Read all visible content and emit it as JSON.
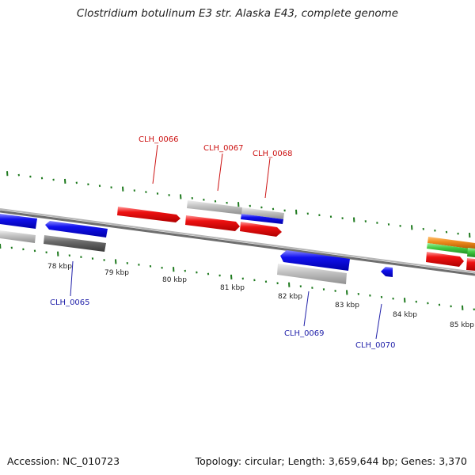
{
  "title": "Clostridium botulinum E3 str. Alaska E43, complete genome",
  "footer": {
    "accession": "Accession: NC_010723",
    "summary": "Topology: circular; Length: 3,659,644 bp; Genes: 3,370"
  },
  "colors": {
    "backbone": "#808080",
    "ticks": "#1e7a1e",
    "red": "#ee1111",
    "blue": "#1111ee",
    "lightgray": "#c4c4c4",
    "darkgray": "#6a6a6a",
    "orange": "#f08c1e",
    "green": "#44cc44",
    "label_top": "#cc1111",
    "label_bottom": "#2222aa"
  },
  "scale_labels": [
    "78 kbp",
    "79 kbp",
    "80 kbp",
    "81 kbp",
    "82 kbp",
    "83 kbp",
    "84 kbp",
    "85 kbp"
  ],
  "gene_labels_top": [
    "CLH_0066",
    "CLH_0067",
    "CLH_0068"
  ],
  "gene_labels_bottom": [
    "CLH_0065",
    "CLH_0069",
    "CLH_0070"
  ]
}
